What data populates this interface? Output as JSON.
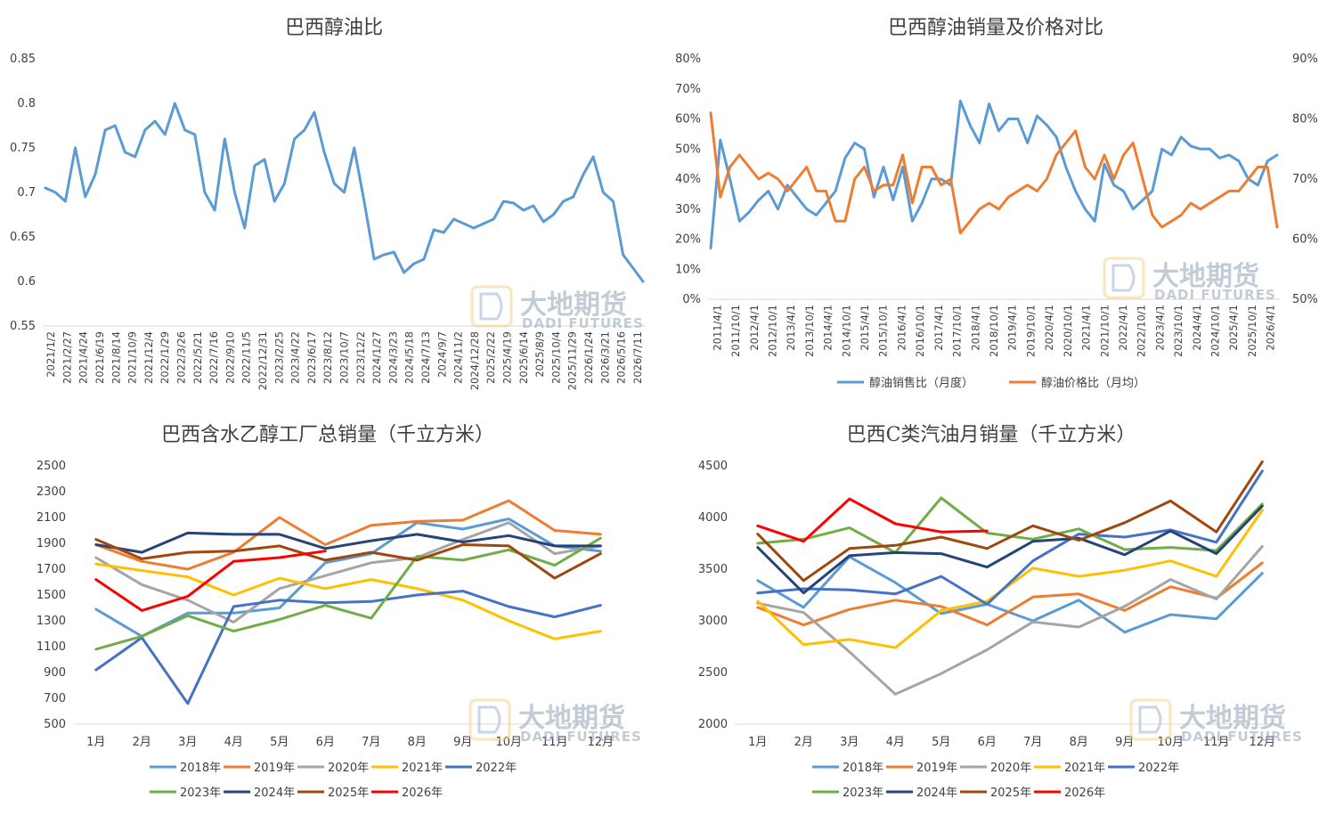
{
  "watermark": {
    "cn": "大地期货",
    "en": "DADI FUTURES"
  },
  "chart_data": [
    {
      "id": "c1",
      "type": "line",
      "title": "巴西醇油比",
      "ylim": [
        0.55,
        0.85
      ],
      "yticks": [
        "0.85",
        "0.8",
        "0.75",
        "0.7",
        "0.65",
        "0.6",
        "0.55"
      ],
      "x_labels": [
        "2021/1/2",
        "2021/2/27",
        "2021/4/24",
        "2021/6/19",
        "2021/8/14",
        "2021/10/9",
        "2021/12/4",
        "2022/1/29",
        "2022/3/26",
        "2022/5/21",
        "2022/7/16",
        "2022/9/10",
        "2022/11/5",
        "2022/12/31",
        "2023/2/25",
        "2023/4/22",
        "2023/6/17",
        "2023/8/12",
        "2023/10/7",
        "2023/12/2",
        "2024/1/27",
        "2024/3/23",
        "2024/5/18",
        "2024/7/13",
        "2024/9/7",
        "2024/11/2",
        "2024/12/28",
        "2025/2/22",
        "2025/4/19",
        "2025/6/14",
        "2025/8/9",
        "2025/10/4",
        "2025/11/29",
        "2026/1/24",
        "2026/3/21",
        "2026/5/16",
        "2026/7/11"
      ],
      "series": [
        {
          "color": "#5b9bd5",
          "values": [
            0.705,
            0.7,
            0.69,
            0.75,
            0.695,
            0.72,
            0.77,
            0.775,
            0.745,
            0.74,
            0.77,
            0.78,
            0.765,
            0.8,
            0.77,
            0.765,
            0.7,
            0.68,
            0.76,
            0.7,
            0.66,
            0.73,
            0.737,
            0.69,
            0.71,
            0.76,
            0.77,
            0.79,
            0.745,
            0.71,
            0.7,
            0.75,
            0.69,
            0.625,
            0.63,
            0.633,
            0.61,
            0.62,
            0.625,
            0.658,
            0.655,
            0.67,
            0.665,
            0.66,
            0.665,
            0.67,
            0.69,
            0.688,
            0.68,
            0.685,
            0.667,
            0.675,
            0.69,
            0.695,
            0.72,
            0.74,
            0.7,
            0.69,
            0.63,
            0.615,
            0.6
          ]
        }
      ]
    },
    {
      "id": "c2",
      "type": "line",
      "title": "巴西醇油销量及价格对比",
      "ylim": [
        0,
        80
      ],
      "y2lim": [
        50,
        90
      ],
      "yticks": [
        "80%",
        "70%",
        "60%",
        "50%",
        "40%",
        "30%",
        "20%",
        "10%",
        "0%"
      ],
      "y2ticks": [
        "90%",
        "80%",
        "70%",
        "60%",
        "50%"
      ],
      "x_labels": [
        "2011/4/1",
        "2011/10/1",
        "2012/4/1",
        "2012/10/1",
        "2013/4/1",
        "2013/10/1",
        "2014/4/1",
        "2014/10/1",
        "2015/4/1",
        "2015/10/1",
        "2016/4/1",
        "2016/10/1",
        "2017/4/1",
        "2017/10/1",
        "2018/4/1",
        "2018/10/1",
        "2019/4/1",
        "2019/10/1",
        "2020/4/1",
        "2020/10/1",
        "2021/4/1",
        "2021/10/1",
        "2022/4/1",
        "2022/10/1",
        "2023/4/1",
        "2023/10/1",
        "2024/4/1",
        "2024/10/1",
        "2025/4/1",
        "2025/10/1",
        "2026/4/1"
      ],
      "series": [
        {
          "name": "醇油销售比（月度）",
          "color": "#5b9bd5",
          "axis": "left",
          "values": [
            17,
            53,
            40,
            26,
            29,
            33,
            36,
            30,
            38,
            34,
            30,
            28,
            32,
            36,
            47,
            52,
            50,
            34,
            44,
            33,
            44,
            26,
            32,
            40,
            40,
            38,
            66,
            58,
            52,
            65,
            56,
            60,
            60,
            52,
            61,
            58,
            54,
            44,
            36,
            30,
            26,
            45,
            38,
            36,
            30,
            33,
            36,
            50,
            48,
            54,
            51,
            50,
            50,
            47,
            48,
            46,
            40,
            38,
            46,
            48
          ]
        },
        {
          "name": "醇油价格比（月均）",
          "color": "#ed7d31",
          "axis": "right",
          "values": [
            81,
            67,
            72,
            74,
            72,
            70,
            71,
            70,
            68,
            70,
            72,
            68,
            68,
            63,
            63,
            70,
            72,
            68,
            69,
            69,
            74,
            66,
            72,
            72,
            69,
            70,
            61,
            63,
            65,
            66,
            65,
            67,
            68,
            69,
            68,
            70,
            74,
            76,
            78,
            72,
            70,
            74,
            70,
            74,
            76,
            70,
            64,
            62,
            63,
            64,
            66,
            65,
            66,
            67,
            68,
            68,
            70,
            72,
            72,
            62
          ]
        }
      ],
      "legend_position": "bottom"
    },
    {
      "id": "c3",
      "type": "line",
      "title": "巴西含水乙醇工厂总销量（千立方米）",
      "ylim": [
        500,
        2500
      ],
      "yticks": [
        "2500",
        "2300",
        "2100",
        "1900",
        "1700",
        "1500",
        "1300",
        "1100",
        "900",
        "700",
        "500"
      ],
      "categories": [
        "1月",
        "2月",
        "3月",
        "4月",
        "5月",
        "6月",
        "7月",
        "8月",
        "9月",
        "10月",
        "11月",
        "12月"
      ],
      "legend_position": "bottom",
      "series": [
        {
          "name": "2018年",
          "color": "#5b9bd5",
          "values": [
            1390,
            1180,
            1360,
            1360,
            1400,
            1750,
            1820,
            2060,
            2010,
            2090,
            1880,
            1840
          ]
        },
        {
          "name": "2019年",
          "color": "#ed7d31",
          "values": [
            1890,
            1760,
            1700,
            1830,
            2100,
            1890,
            2040,
            2070,
            2080,
            2230,
            2000,
            1970
          ]
        },
        {
          "name": "2020年",
          "color": "#a5a5a5",
          "values": [
            1790,
            1580,
            1460,
            1290,
            1550,
            1650,
            1750,
            1790,
            1930,
            2060,
            1820,
            1880
          ]
        },
        {
          "name": "2021年",
          "color": "#ffc000",
          "values": [
            1740,
            1690,
            1640,
            1500,
            1630,
            1550,
            1620,
            1550,
            1460,
            1300,
            1160,
            1220
          ]
        },
        {
          "name": "2022年",
          "color": "#4472c4",
          "values": [
            920,
            1170,
            660,
            1410,
            1460,
            1440,
            1450,
            1500,
            1530,
            1410,
            1330,
            1420
          ]
        },
        {
          "name": "2023年",
          "color": "#70ad47",
          "values": [
            1080,
            1180,
            1340,
            1220,
            1310,
            1420,
            1320,
            1800,
            1770,
            1850,
            1730,
            1940
          ]
        },
        {
          "name": "2024年",
          "color": "#264478",
          "values": [
            1890,
            1830,
            1980,
            1970,
            1970,
            1860,
            1920,
            1970,
            1910,
            1960,
            1880,
            1880
          ]
        },
        {
          "name": "2025年",
          "color": "#9e480e",
          "values": [
            1930,
            1780,
            1830,
            1840,
            1880,
            1770,
            1830,
            1770,
            1890,
            1880,
            1630,
            1820
          ]
        },
        {
          "name": "2026年",
          "color": "#ff0000",
          "values": [
            1620,
            1380,
            1490,
            1760,
            1790,
            1840,
            null,
            null,
            null,
            null,
            null,
            null
          ]
        }
      ]
    },
    {
      "id": "c4",
      "type": "line",
      "title": "巴西C类汽油月销量（千立方米）",
      "ylim": [
        2000,
        4500
      ],
      "yticks": [
        "4500",
        "4000",
        "3500",
        "3000",
        "2500",
        "2000"
      ],
      "categories": [
        "1月",
        "2月",
        "3月",
        "4月",
        "5月",
        "6月",
        "7月",
        "8月",
        "9月",
        "10月",
        "11月",
        "12月"
      ],
      "legend_position": "bottom",
      "series": [
        {
          "name": "2018年",
          "color": "#5b9bd5",
          "values": [
            3390,
            3130,
            3620,
            3370,
            3070,
            3160,
            3000,
            3200,
            2890,
            3060,
            3020,
            3460
          ]
        },
        {
          "name": "2019年",
          "color": "#ed7d31",
          "values": [
            3130,
            2960,
            3110,
            3200,
            3140,
            2960,
            3230,
            3260,
            3100,
            3330,
            3220,
            3560
          ]
        },
        {
          "name": "2020年",
          "color": "#a5a5a5",
          "values": [
            3170,
            3080,
            2700,
            2290,
            2490,
            2720,
            2990,
            2940,
            3140,
            3400,
            3210,
            3720
          ]
        },
        {
          "name": "2021年",
          "color": "#ffc000",
          "values": [
            3190,
            2770,
            2820,
            2740,
            3100,
            3190,
            3510,
            3430,
            3490,
            3580,
            3430,
            4070
          ]
        },
        {
          "name": "2022年",
          "color": "#4472c4",
          "values": [
            3270,
            3310,
            3300,
            3260,
            3430,
            3160,
            3580,
            3840,
            3810,
            3880,
            3760,
            4450
          ]
        },
        {
          "name": "2023年",
          "color": "#70ad47",
          "values": [
            3750,
            3790,
            3900,
            3660,
            4190,
            3850,
            3790,
            3890,
            3690,
            3710,
            3680,
            4130
          ]
        },
        {
          "name": "2024年",
          "color": "#264478",
          "values": [
            3710,
            3270,
            3630,
            3660,
            3650,
            3520,
            3770,
            3800,
            3640,
            3870,
            3650,
            4110
          ]
        },
        {
          "name": "2025年",
          "color": "#9e480e",
          "values": [
            3840,
            3390,
            3700,
            3730,
            3810,
            3700,
            3920,
            3780,
            3950,
            4160,
            3860,
            4540
          ]
        },
        {
          "name": "2026年",
          "color": "#ff0000",
          "values": [
            3920,
            3770,
            4180,
            3940,
            3860,
            3870,
            null,
            null,
            null,
            null,
            null,
            null
          ]
        }
      ]
    }
  ]
}
